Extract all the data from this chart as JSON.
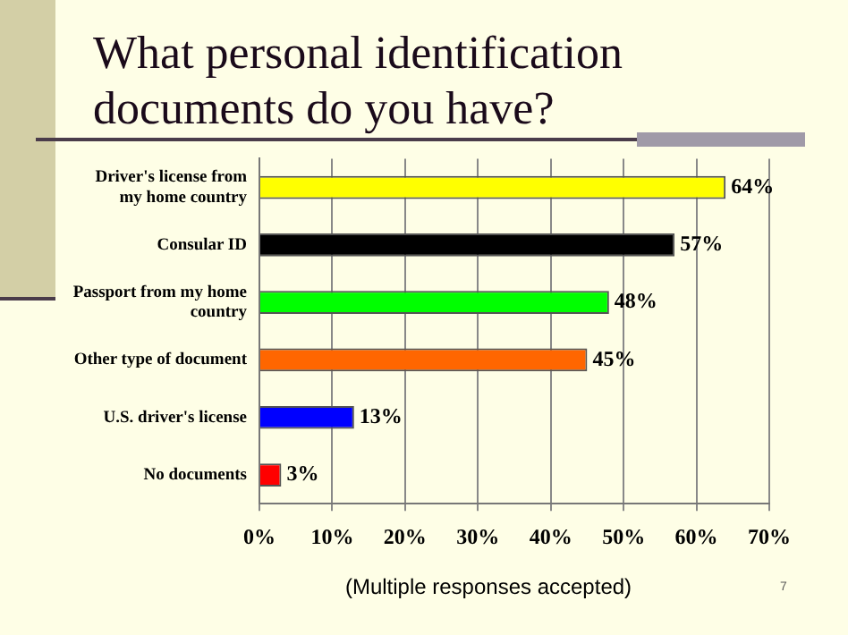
{
  "chart_data": {
    "type": "bar",
    "orientation": "horizontal",
    "title": "What personal identification documents do you have?",
    "categories": [
      "Driver's license from my home country",
      "Consular ID",
      "Passport from my home country",
      "Other type of document",
      "U.S. driver's license",
      "No documents"
    ],
    "values": [
      64,
      57,
      48,
      45,
      13,
      3
    ],
    "colors": [
      "#ffff00",
      "#000000",
      "#00ff00",
      "#ff6600",
      "#0000ff",
      "#ff0000"
    ],
    "value_labels": [
      "64%",
      "57%",
      "48%",
      "45%",
      "13%",
      "3%"
    ],
    "xlim": [
      0,
      70
    ],
    "xticks": [
      {
        "value": 0,
        "label": "0%"
      },
      {
        "value": 10,
        "label": "10%"
      },
      {
        "value": 20,
        "label": "20%"
      },
      {
        "value": 30,
        "label": "30%"
      },
      {
        "value": 40,
        "label": "40%"
      },
      {
        "value": 50,
        "label": "50%"
      },
      {
        "value": 60,
        "label": "60%"
      },
      {
        "value": 70,
        "label": "70%"
      }
    ],
    "grid": "x",
    "annotations": [
      "(Multiple responses accepted)",
      "7"
    ]
  }
}
